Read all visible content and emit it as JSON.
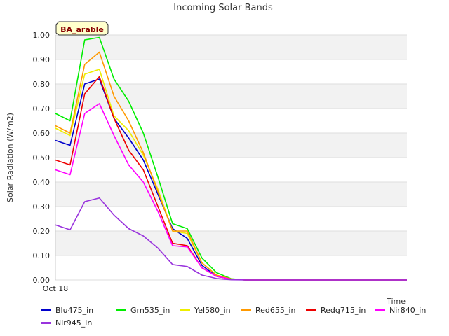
{
  "chart_data": {
    "type": "line",
    "title": "Incoming Solar Bands",
    "xlabel": "Time",
    "ylabel": "Solar Radiation (W/m2)",
    "ylim": [
      0,
      1.0
    ],
    "yticks": [
      "0.00",
      "0.10",
      "0.20",
      "0.30",
      "0.40",
      "0.50",
      "0.60",
      "0.70",
      "0.80",
      "0.90",
      "1.00"
    ],
    "xtick_label": "Oct 18",
    "annotation": "BA_arable",
    "x": [
      0,
      1,
      2,
      3,
      4,
      5,
      6,
      7,
      8,
      9,
      10,
      11,
      12,
      13,
      14,
      15,
      16,
      17,
      18,
      19,
      20,
      21,
      22,
      23,
      24
    ],
    "series": [
      {
        "name": "Blu475_in",
        "color": "#0000cc",
        "values": [
          0.57,
          0.55,
          0.8,
          0.82,
          0.66,
          0.58,
          0.49,
          0.35,
          0.21,
          0.17,
          0.06,
          0.015,
          0.003,
          0,
          0,
          0,
          0,
          0,
          0,
          0,
          0,
          0,
          0,
          0,
          0
        ]
      },
      {
        "name": "Grn535_in",
        "color": "#00ee00",
        "values": [
          0.68,
          0.65,
          0.98,
          0.99,
          0.82,
          0.73,
          0.6,
          0.42,
          0.23,
          0.21,
          0.09,
          0.03,
          0.005,
          0,
          0,
          0,
          0,
          0,
          0,
          0,
          0,
          0,
          0,
          0,
          0
        ]
      },
      {
        "name": "Yel580_in",
        "color": "#eeee00",
        "values": [
          0.62,
          0.59,
          0.84,
          0.86,
          0.67,
          0.61,
          0.51,
          0.37,
          0.2,
          0.19,
          0.07,
          0.02,
          0.004,
          0,
          0,
          0,
          0,
          0,
          0,
          0,
          0,
          0,
          0,
          0,
          0
        ]
      },
      {
        "name": "Red655_in",
        "color": "#ff9900",
        "values": [
          0.63,
          0.6,
          0.88,
          0.93,
          0.75,
          0.65,
          0.52,
          0.36,
          0.2,
          0.2,
          0.07,
          0.02,
          0.004,
          0,
          0,
          0,
          0,
          0,
          0,
          0,
          0,
          0,
          0,
          0,
          0
        ]
      },
      {
        "name": "Redg715_in",
        "color": "#ee0000",
        "values": [
          0.49,
          0.47,
          0.76,
          0.83,
          0.66,
          0.53,
          0.45,
          0.3,
          0.15,
          0.14,
          0.05,
          0.015,
          0.003,
          0,
          0,
          0,
          0,
          0,
          0,
          0,
          0,
          0,
          0,
          0,
          0
        ]
      },
      {
        "name": "Nir840_in",
        "color": "#ff00ff",
        "values": [
          0.45,
          0.43,
          0.68,
          0.72,
          0.59,
          0.47,
          0.4,
          0.28,
          0.14,
          0.135,
          0.05,
          0.015,
          0.003,
          0,
          0,
          0,
          0,
          0,
          0,
          0,
          0,
          0,
          0,
          0,
          0
        ]
      },
      {
        "name": "Nir945_in",
        "color": "#9933dd",
        "values": [
          0.225,
          0.205,
          0.32,
          0.335,
          0.265,
          0.21,
          0.18,
          0.13,
          0.063,
          0.055,
          0.02,
          0.006,
          0.001,
          0,
          0,
          0,
          0,
          0,
          0,
          0,
          0,
          0,
          0,
          0,
          0
        ]
      }
    ]
  }
}
